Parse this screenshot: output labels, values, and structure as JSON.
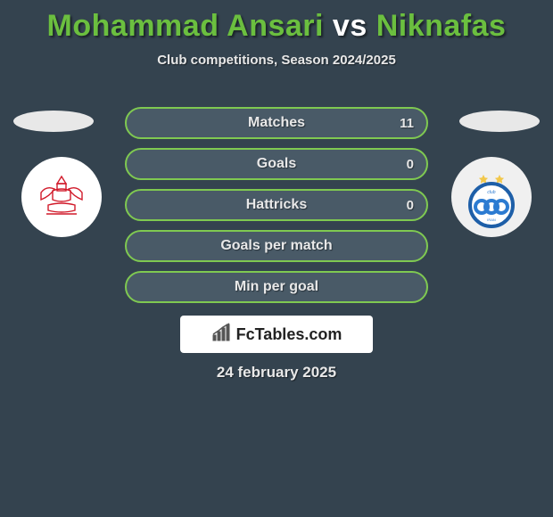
{
  "title": {
    "player1": "Mohammad Ansari",
    "vs": "vs",
    "player2": "Niknafas",
    "player1_color": "#6bbf3f",
    "vs_color": "#ffffff",
    "player2_color": "#6bbf3f"
  },
  "subtitle": "Club competitions, Season 2024/2025",
  "stats": {
    "pill_bg": "#495a67",
    "pill_border": "#7fc951",
    "label_color": "#e8e8e8",
    "value_color": "#e8e8e8",
    "rows": [
      {
        "label": "Matches",
        "value_right": "11"
      },
      {
        "label": "Goals",
        "value_right": "0"
      },
      {
        "label": "Hattricks",
        "value_right": "0"
      },
      {
        "label": "Goals per match",
        "value_right": ""
      },
      {
        "label": "Min per goal",
        "value_right": ""
      }
    ]
  },
  "avatars": {
    "ellipse_color": "#e8e8e8"
  },
  "clubs": {
    "left": {
      "badge_bg": "#ffffff",
      "emblem_stroke": "#d11a2a"
    },
    "right": {
      "badge_bg": "#f0f0f0",
      "ring_stroke": "#1e5fa8",
      "ring_fill": "#ffffff",
      "center_fill": "#2c7bd1",
      "star_color": "#f2c84b"
    }
  },
  "brand": {
    "text": "FcTables.com",
    "icon_color": "#555555",
    "text_color": "#222222",
    "bg": "#ffffff"
  },
  "date": "24 february 2025",
  "colors": {
    "page_bg": "#34434f"
  }
}
